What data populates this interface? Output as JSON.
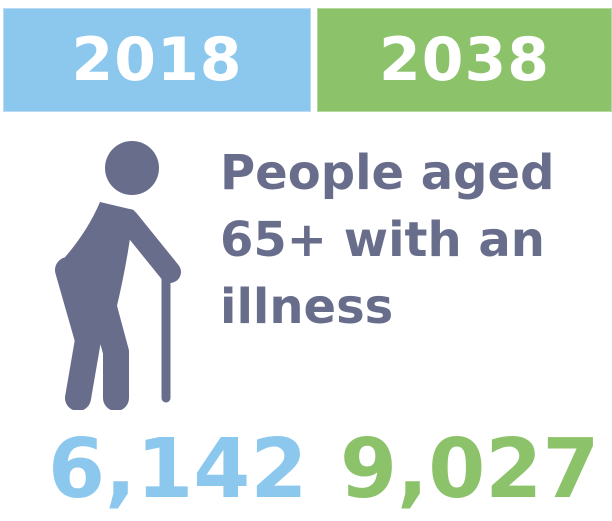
{
  "header": {
    "year_left": "2018",
    "year_right": "2038"
  },
  "caption": {
    "lines": [
      "People aged",
      "65+ with an",
      "illness"
    ]
  },
  "values": {
    "left": "6,142",
    "right": "9,027"
  },
  "icons": {
    "figure": "elderly-person-with-cane-icon"
  },
  "colors": {
    "blue": "#8cc8ee",
    "green": "#8cc26a",
    "slate": "#686d8c"
  }
}
